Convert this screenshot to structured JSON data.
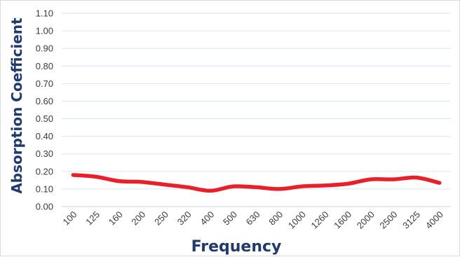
{
  "chart_data": {
    "type": "line",
    "title": "",
    "xlabel": "Frequency",
    "ylabel": "Absorption Coefficient",
    "categories": [
      "100",
      "125",
      "160",
      "200",
      "250",
      "320",
      "400",
      "500",
      "630",
      "800",
      "1000",
      "1260",
      "1600",
      "2000",
      "2500",
      "3125",
      "4000"
    ],
    "series": [
      {
        "values": [
          0.18,
          0.17,
          0.145,
          0.14,
          0.125,
          0.11,
          0.09,
          0.115,
          0.11,
          0.1,
          0.115,
          0.12,
          0.13,
          0.155,
          0.155,
          0.165,
          0.135
        ]
      }
    ],
    "ylim": [
      0,
      1.1
    ],
    "yticks": [
      "0.00",
      "0.10",
      "0.20",
      "0.30",
      "0.40",
      "0.50",
      "0.60",
      "0.70",
      "0.80",
      "0.90",
      "1.00",
      "1.10"
    ],
    "grid": true,
    "line_color": "#e8202a",
    "grid_color": "#d6e4f0"
  }
}
